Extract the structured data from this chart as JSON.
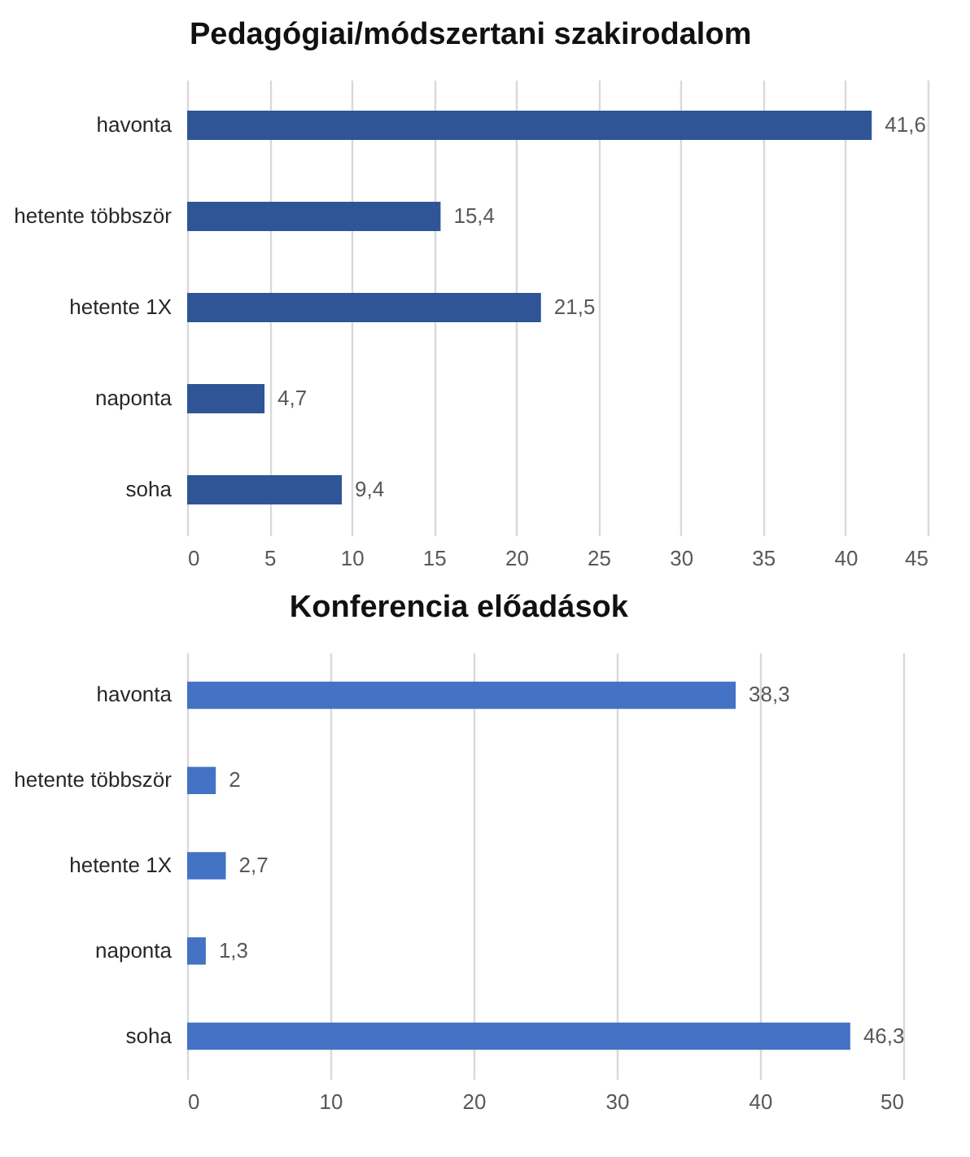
{
  "chart_data": [
    {
      "type": "bar",
      "orientation": "horizontal",
      "title": "Pedagógiai/módszertani szakirodalom",
      "categories": [
        "havonta",
        "hetente többször",
        "hetente 1X",
        "naponta",
        "soha"
      ],
      "values": [
        41.6,
        15.4,
        21.5,
        4.7,
        9.4
      ],
      "value_labels": [
        "41,6",
        "15,4",
        "21,5",
        "4,7",
        "9,4"
      ],
      "color": "#2f5597",
      "xlim": [
        0,
        45
      ],
      "xticks": [
        0,
        5,
        10,
        15,
        20,
        25,
        30,
        35,
        40,
        45
      ],
      "grid": "x"
    },
    {
      "type": "bar",
      "orientation": "horizontal",
      "title": "Konferencia előadások",
      "categories": [
        "havonta",
        "hetente többször",
        "hetente 1X",
        "naponta",
        "soha"
      ],
      "values": [
        38.3,
        2,
        2.7,
        1.3,
        46.3
      ],
      "value_labels": [
        "38,3",
        "2",
        "2,7",
        "1,3",
        "46,3"
      ],
      "color": "#4472c4",
      "xlim": [
        0,
        50
      ],
      "xticks": [
        0,
        10,
        20,
        30,
        40,
        50
      ],
      "grid": "x"
    }
  ]
}
